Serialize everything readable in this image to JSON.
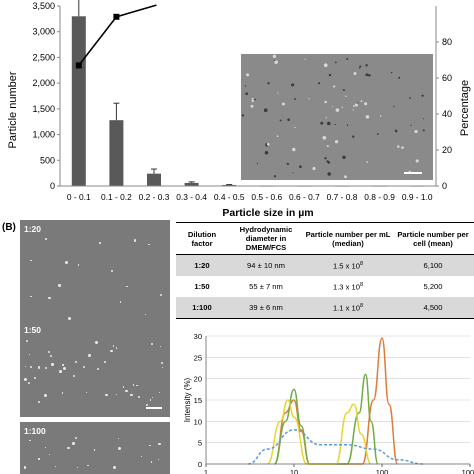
{
  "panel_b_label": "(B)",
  "inset_image": {
    "alt": "micrograph"
  },
  "chart_data": [
    {
      "type": "bar",
      "categories": [
        "0 - 0.1",
        "0.1 - 0.2",
        "0.2 - 0.3",
        "0.3 - 0.4",
        "0.4 - 0.5",
        "0.5 - 0.6",
        "0.6 - 0.7",
        "0.7 - 0.8",
        "0.8 - 0.9",
        "0.9 - 1.0"
      ],
      "values": [
        3300,
        1280,
        240,
        60,
        20,
        0,
        0,
        0,
        0,
        0
      ],
      "errors": [
        480,
        330,
        90,
        20,
        8,
        0,
        0,
        0,
        0,
        0
      ],
      "line_values": [
        67,
        94
      ],
      "xlabel": "Particle size in µm",
      "ylabel": "Particle number",
      "y2label": "Percentage",
      "ylim": [
        0,
        3500
      ],
      "y2lim": [
        0,
        100
      ],
      "yticks": [
        "0",
        "500",
        "1,000",
        "1,500",
        "2,000",
        "2,500",
        "3,000",
        "3,500"
      ],
      "y2ticks": [
        "0",
        "20",
        "40",
        "60",
        "80"
      ],
      "bar_color": "#595959"
    },
    {
      "type": "line",
      "ylabel": "Intensity (%)",
      "ylim": [
        0,
        30
      ],
      "xscale": "log",
      "xlim": [
        1,
        1000
      ],
      "yticks": [
        "0",
        "5",
        "10",
        "15",
        "20",
        "25",
        "30"
      ],
      "xticks": [
        "1",
        "10",
        "100",
        "1000"
      ],
      "series": [
        {
          "color": "#e07b39",
          "points": [
            [
              6,
              0
            ],
            [
              8,
              12
            ],
            [
              10,
              15
            ],
            [
              12,
              8
            ],
            [
              15,
              0
            ],
            [
              60,
              0
            ],
            [
              80,
              15
            ],
            [
              100,
              29.5
            ],
            [
              120,
              14
            ],
            [
              150,
              0
            ]
          ]
        },
        {
          "color": "#70ad47",
          "points": [
            [
              6,
              0
            ],
            [
              8,
              10
            ],
            [
              10,
              17.5
            ],
            [
              12,
              9
            ],
            [
              15,
              0
            ],
            [
              40,
              0
            ],
            [
              55,
              12
            ],
            [
              65,
              21
            ],
            [
              75,
              10
            ],
            [
              90,
              0
            ]
          ]
        },
        {
          "color": "#e6d535",
          "points": [
            [
              5,
              0
            ],
            [
              7,
              10
            ],
            [
              8.5,
              15
            ],
            [
              10,
              11
            ],
            [
              14,
              0
            ],
            [
              30,
              0
            ],
            [
              40,
              12
            ],
            [
              48,
              14
            ],
            [
              58,
              7
            ],
            [
              75,
              0
            ]
          ]
        },
        {
          "color": "#5b9bd5",
          "dashed": true,
          "points": [
            [
              3,
              0
            ],
            [
              5,
              3.5
            ],
            [
              10,
              8
            ],
            [
              20,
              4.5
            ],
            [
              40,
              4.5
            ],
            [
              80,
              3.5
            ],
            [
              150,
              1
            ],
            [
              300,
              0
            ]
          ]
        }
      ]
    }
  ],
  "table": {
    "headers": [
      "Dilution factor",
      "Hydrodynamic diameter in DMEM/FCS",
      "Particle number per mL (median)",
      "Particle number per cell (mean)"
    ],
    "rows": [
      {
        "dilution": "1:20",
        "diameter": "94 ± 10 nm",
        "per_ml": "1.5 x 10",
        "per_ml_exp": "8",
        "per_cell": "6,100"
      },
      {
        "dilution": "1:50",
        "diameter": "55 ± 7 nm",
        "per_ml": "1.3 x 10",
        "per_ml_exp": "8",
        "per_cell": "5,200"
      },
      {
        "dilution": "1:100",
        "diameter": "39 ± 6 nm",
        "per_ml": "1.1 x 10",
        "per_ml_exp": "8",
        "per_cell": "4,500"
      }
    ]
  },
  "micrographs": [
    {
      "label": "1:20"
    },
    {
      "label": "1:50"
    },
    {
      "label": "1:100"
    }
  ]
}
